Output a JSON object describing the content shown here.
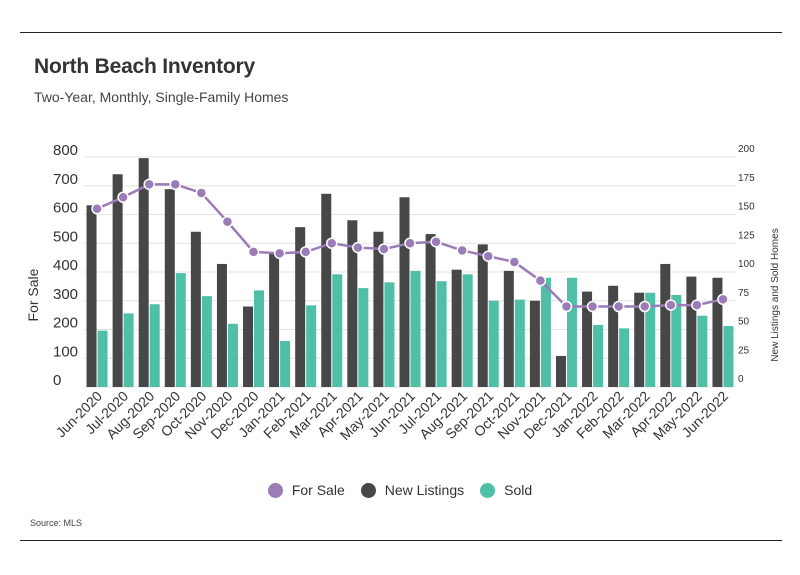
{
  "header": {
    "title": "North Beach Inventory",
    "subtitle": "Two-Year, Monthly, Single-Family Homes"
  },
  "footer": {
    "source": "Source:  MLS"
  },
  "colors": {
    "for_sale": "#9b7bb8",
    "new_listings": "#474747",
    "sold": "#4fbfa8",
    "grid": "#e3e3e3"
  },
  "chart_data": {
    "type": "bar",
    "categories": [
      "Jun-2020",
      "Jul-2020",
      "Aug-2020",
      "Sep-2020",
      "Oct-2020",
      "Nov-2020",
      "Dec-2020",
      "Jan-2021",
      "Feb-2021",
      "Mar-2021",
      "Apr-2021",
      "May-2021",
      "Jun-2021",
      "Jul-2021",
      "Aug-2021",
      "Sep-2021",
      "Oct-2021",
      "Nov-2021",
      "Dec-2021",
      "Jan-2022",
      "Feb-2022",
      "Mar-2022",
      "Apr-2022",
      "May-2022",
      "Jun-2022"
    ],
    "left_axis": {
      "label": "For Sale",
      "ylim": [
        0,
        800
      ],
      "ticks": [
        "0",
        "100",
        "200",
        "300",
        "400",
        "500",
        "600",
        "700",
        "800"
      ]
    },
    "right_axis": {
      "label": "New Listings and Sold Homes",
      "ylim": [
        0,
        200
      ],
      "ticks": [
        "0",
        "25",
        "50",
        "75",
        "100",
        "125",
        "150",
        "175",
        "200"
      ]
    },
    "grid": true,
    "legend_position": "bottom",
    "series": [
      {
        "name": "For Sale",
        "kind": "line",
        "axis": "left",
        "values": [
          620,
          660,
          705,
          705,
          675,
          575,
          470,
          465,
          470,
          500,
          485,
          480,
          500,
          505,
          475,
          455,
          435,
          370,
          280,
          280,
          280,
          280,
          285,
          285,
          305
        ]
      },
      {
        "name": "New Listings",
        "kind": "bar",
        "axis": "right",
        "values": [
          158,
          185,
          199,
          172,
          135,
          107,
          70,
          116,
          139,
          168,
          145,
          135,
          165,
          133,
          102,
          124,
          101,
          75,
          27,
          83,
          88,
          82,
          107,
          96,
          95
        ]
      },
      {
        "name": "Sold",
        "kind": "bar",
        "axis": "right",
        "values": [
          49,
          64,
          72,
          99,
          79,
          55,
          84,
          40,
          71,
          98,
          86,
          91,
          101,
          92,
          98,
          75,
          76,
          95,
          95,
          54,
          51,
          82,
          80,
          62,
          53
        ]
      }
    ]
  }
}
